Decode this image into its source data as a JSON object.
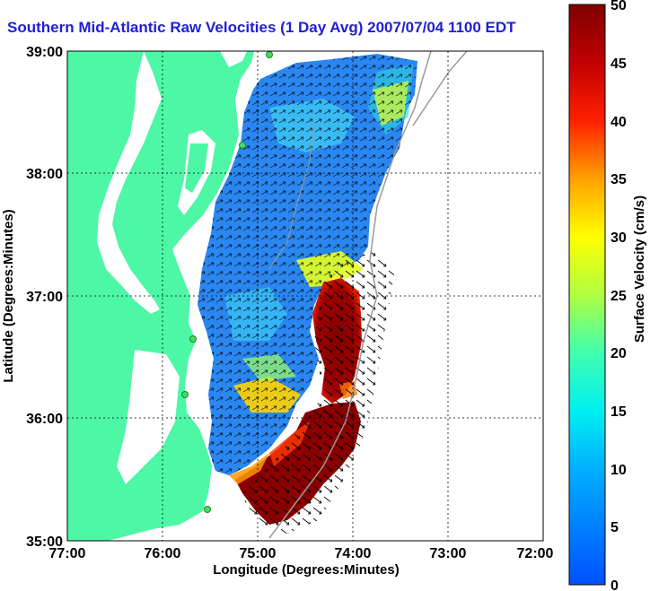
{
  "title": "Southern Mid-Atlantic Raw Velocities (1 Day Avg) 2007/07/04 1100 EDT",
  "chart_data": {
    "type": "heatmap",
    "xlabel": "Longitude (Degrees:Minutes)",
    "ylabel": "Latitude (Degrees:Minutes)",
    "x_ticks": [
      "77:00",
      "76:00",
      "75:00",
      "74:00",
      "73:00",
      "72:00"
    ],
    "y_ticks": [
      "39:00",
      "38:00",
      "37:00",
      "36:00",
      "35:00"
    ],
    "xlim": [
      -77,
      -72
    ],
    "ylim": [
      35,
      39
    ],
    "grid": true,
    "colorbar": {
      "label": "Surface Velocity (cm/s)",
      "range": [
        0,
        50
      ],
      "ticks": [
        "50",
        "45",
        "40",
        "35",
        "30",
        "25",
        "20",
        "15",
        "10",
        "5",
        "0"
      ]
    },
    "colors": {
      "land": "#4df7a6",
      "low_velocity": "#1e8fff",
      "high_velocity": "#800000"
    }
  }
}
